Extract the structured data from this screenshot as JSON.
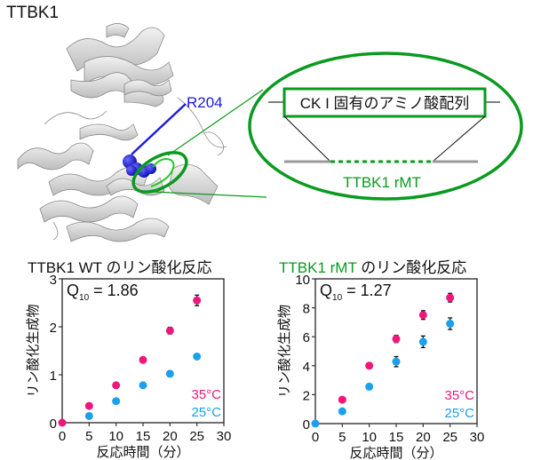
{
  "figure": {
    "protein_label": "TTBK1",
    "residue_label": "R204",
    "inset_box_label": "CK I 固有のアミノ酸配列",
    "inset_construct_label": "TTBK1 rMT"
  },
  "colors": {
    "pink_35C": "#f0177a",
    "blue_25C": "#1aa0ec",
    "green": "#0a9a1f",
    "residue_blue": "#1a1adc",
    "backbone_gray": "#9a9a9a"
  },
  "chart_data": [
    {
      "type": "scatter",
      "title_prefix": "TTBK1 WT",
      "title_suffix": " のリン酸化反応",
      "annotation": {
        "q_label": "Q",
        "q_sub": "10",
        "q_value": " = 1.86"
      },
      "xlabel": "反応時間（分）",
      "ylabel": "リン酸化生成物",
      "xlim": [
        0,
        30
      ],
      "ylim": [
        0,
        3
      ],
      "xticks": [
        0,
        5,
        10,
        15,
        20,
        25,
        30
      ],
      "yticks": [
        0,
        1,
        2,
        3
      ],
      "series": [
        {
          "name": "35°C",
          "color": "#f0177a",
          "x": [
            0,
            5,
            10,
            15,
            20,
            25
          ],
          "values": [
            0,
            0.35,
            0.78,
            1.31,
            1.92,
            2.55
          ],
          "err": [
            0,
            0,
            0,
            0,
            0.07,
            0.11
          ]
        },
        {
          "name": "25°C",
          "color": "#1aa0ec",
          "x": [
            5,
            10,
            15,
            20,
            25
          ],
          "values": [
            0.14,
            0.45,
            0.78,
            1.02,
            1.38
          ],
          "err": [
            0,
            0,
            0,
            0,
            0.05
          ]
        }
      ],
      "legend": [
        "35°C",
        "25°C"
      ],
      "legend_position": "lower right"
    },
    {
      "type": "scatter",
      "title_prefix": "TTBK1 rMT",
      "title_suffix": " のリン酸化反応",
      "annotation": {
        "q_label": "Q",
        "q_sub": "10",
        "q_value": " = 1.27"
      },
      "xlabel": "反応時間（分）",
      "ylabel": "リン酸化生成物",
      "xlim": [
        0,
        30
      ],
      "ylim": [
        0,
        10
      ],
      "xticks": [
        0,
        5,
        10,
        15,
        20,
        25,
        30
      ],
      "yticks": [
        0,
        2,
        4,
        6,
        8,
        10
      ],
      "series": [
        {
          "name": "35°C",
          "color": "#f0177a",
          "x": [
            5,
            10,
            15,
            20,
            25
          ],
          "values": [
            1.65,
            4.0,
            5.85,
            7.5,
            8.7
          ],
          "err": [
            0,
            0.15,
            0.25,
            0.3,
            0.3
          ]
        },
        {
          "name": "25°C",
          "color": "#1aa0ec",
          "x": [
            0,
            5,
            10,
            15,
            20,
            25
          ],
          "values": [
            0,
            0.85,
            2.55,
            4.28,
            5.65,
            6.9
          ],
          "err": [
            0,
            0,
            0.2,
            0.35,
            0.4,
            0.4
          ]
        }
      ],
      "legend": [
        "35°C",
        "25°C"
      ],
      "legend_position": "lower right"
    }
  ]
}
